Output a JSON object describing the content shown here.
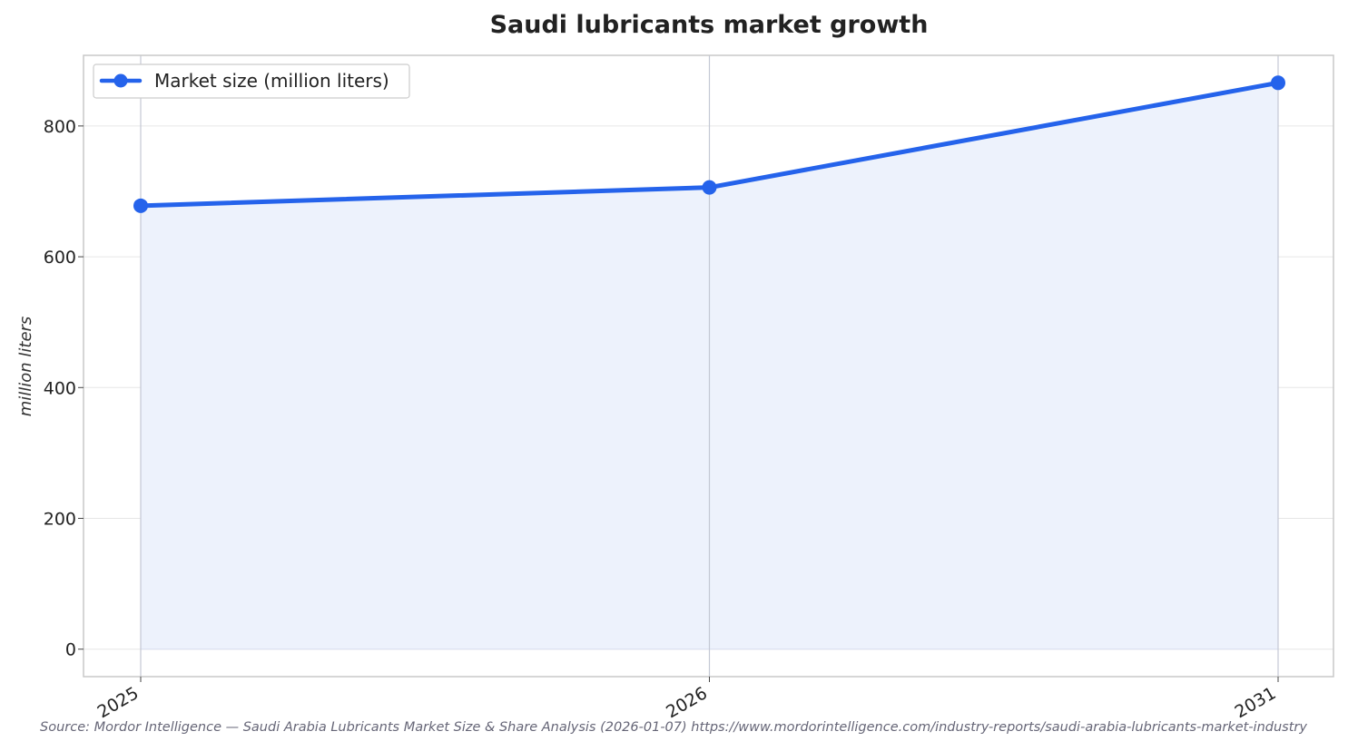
{
  "chart_data": {
    "type": "line",
    "title": "Saudi lubricants market growth",
    "xlabel": "",
    "ylabel": "million liters",
    "categories": [
      "2025",
      "2026",
      "2031"
    ],
    "series": [
      {
        "name": "Market size (million liters)",
        "values": [
          678,
          706,
          866
        ]
      }
    ],
    "ylim": [
      -42,
      908
    ],
    "yticks": [
      0,
      200,
      400,
      600,
      800
    ],
    "grid": true,
    "area_fill": true,
    "legend_position": "top-left",
    "colors": {
      "line": "#2563eb",
      "fill": "#edf2fc",
      "grid": "#e6e6e6",
      "vgrid": "#c4c8d4",
      "frame": "#c8c8c8"
    }
  },
  "source_note": "Source: Mordor Intelligence — Saudi Arabia Lubricants Market Size & Share Analysis (2026-01-07) https://www.mordorintelligence.com/industry-reports/saudi-arabia-lubricants-market-industry"
}
